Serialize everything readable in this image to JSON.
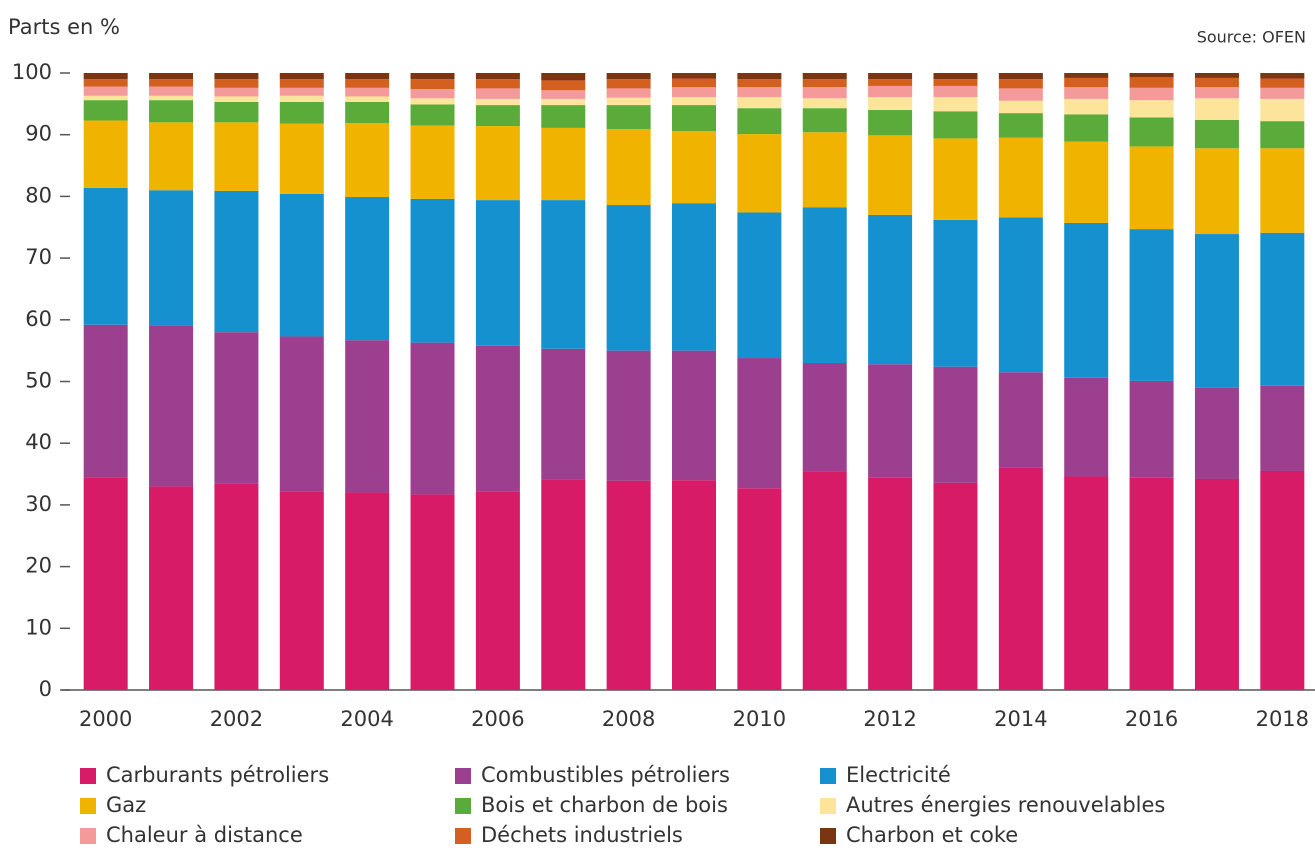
{
  "chart_data": {
    "type": "stacked_bar",
    "title": "Parts en %",
    "source": "Source: OFEN",
    "categories": [
      "2000",
      null,
      "2002",
      null,
      "2004",
      null,
      "2006",
      null,
      "2008",
      null,
      "2010",
      null,
      "2012",
      null,
      "2014",
      null,
      "2016",
      null,
      "2018"
    ],
    "ylim": [
      0,
      100
    ],
    "yticks": [
      0,
      10,
      20,
      30,
      40,
      50,
      60,
      70,
      80,
      90,
      100
    ],
    "grid": false,
    "series": [
      {
        "name": "Carburants pétroliers",
        "color": "#d81b67",
        "values": [
          34.5,
          33,
          33.4,
          32.2,
          32,
          31.7,
          32.2,
          34.1,
          33.9,
          34,
          32.7,
          35.4,
          34.4,
          33.6,
          36,
          34.6,
          34.4,
          34.2,
          35.5
        ]
      },
      {
        "name": "Combustibles pétroliers",
        "color": "#9c3f8f",
        "values": [
          24.7,
          26,
          24.6,
          25.1,
          24.7,
          24.6,
          23.6,
          21.2,
          21.1,
          21,
          21.1,
          17.6,
          18.4,
          18.8,
          15.5,
          16,
          15.7,
          14.8,
          13.8
        ]
      },
      {
        "name": "Electricité",
        "color": "#1591cf",
        "values": [
          22.2,
          22,
          22.9,
          23.1,
          23.2,
          23.3,
          23.6,
          24.1,
          23.6,
          23.9,
          23.6,
          25.2,
          24.2,
          23.8,
          25.1,
          25.1,
          24.6,
          24.9,
          24.8
        ]
      },
      {
        "name": "Gaz",
        "color": "#f0b400",
        "values": [
          10.9,
          11,
          11.1,
          11.4,
          12,
          11.9,
          12,
          11.7,
          12.3,
          11.7,
          12.7,
          12.2,
          12.9,
          13.2,
          12.9,
          13.2,
          13.4,
          13.9,
          13.7
        ]
      },
      {
        "name": "Bois et charbon de bois",
        "color": "#5aab3a",
        "values": [
          3.3,
          3.6,
          3.3,
          3.5,
          3.4,
          3.4,
          3.4,
          3.7,
          3.9,
          4.2,
          4.2,
          3.9,
          4.1,
          4.4,
          4,
          4.4,
          4.7,
          4.6,
          4.4
        ]
      },
      {
        "name": "Autres énergies renouvelables",
        "color": "#fce59a",
        "values": [
          0.7,
          0.7,
          0.9,
          1,
          0.9,
          1,
          1,
          1,
          1.2,
          1.3,
          1.8,
          1.6,
          2.1,
          2.3,
          2,
          2.5,
          2.8,
          3.5,
          3.6
        ]
      },
      {
        "name": "Chaleur à distance",
        "color": "#f49a9a",
        "values": [
          1.5,
          1.5,
          1.4,
          1.3,
          1.4,
          1.5,
          1.7,
          1.4,
          1.5,
          1.6,
          1.6,
          1.8,
          1.8,
          1.8,
          2,
          1.9,
          2,
          1.8,
          1.8
        ]
      },
      {
        "name": "Déchets industriels",
        "color": "#d3601f",
        "values": [
          1.2,
          1.2,
          1.4,
          1.4,
          1.4,
          1.6,
          1.5,
          1.6,
          1.5,
          1.4,
          1.3,
          1.3,
          1.1,
          1.1,
          1.5,
          1.5,
          1.7,
          1.5,
          1.5
        ]
      },
      {
        "name": "Charbon et coke",
        "color": "#7a3513",
        "values": [
          1,
          1,
          1,
          1,
          1,
          1,
          1,
          1.2,
          1,
          0.9,
          1,
          1,
          1,
          1,
          1,
          0.8,
          0.7,
          0.8,
          0.9
        ]
      }
    ]
  }
}
